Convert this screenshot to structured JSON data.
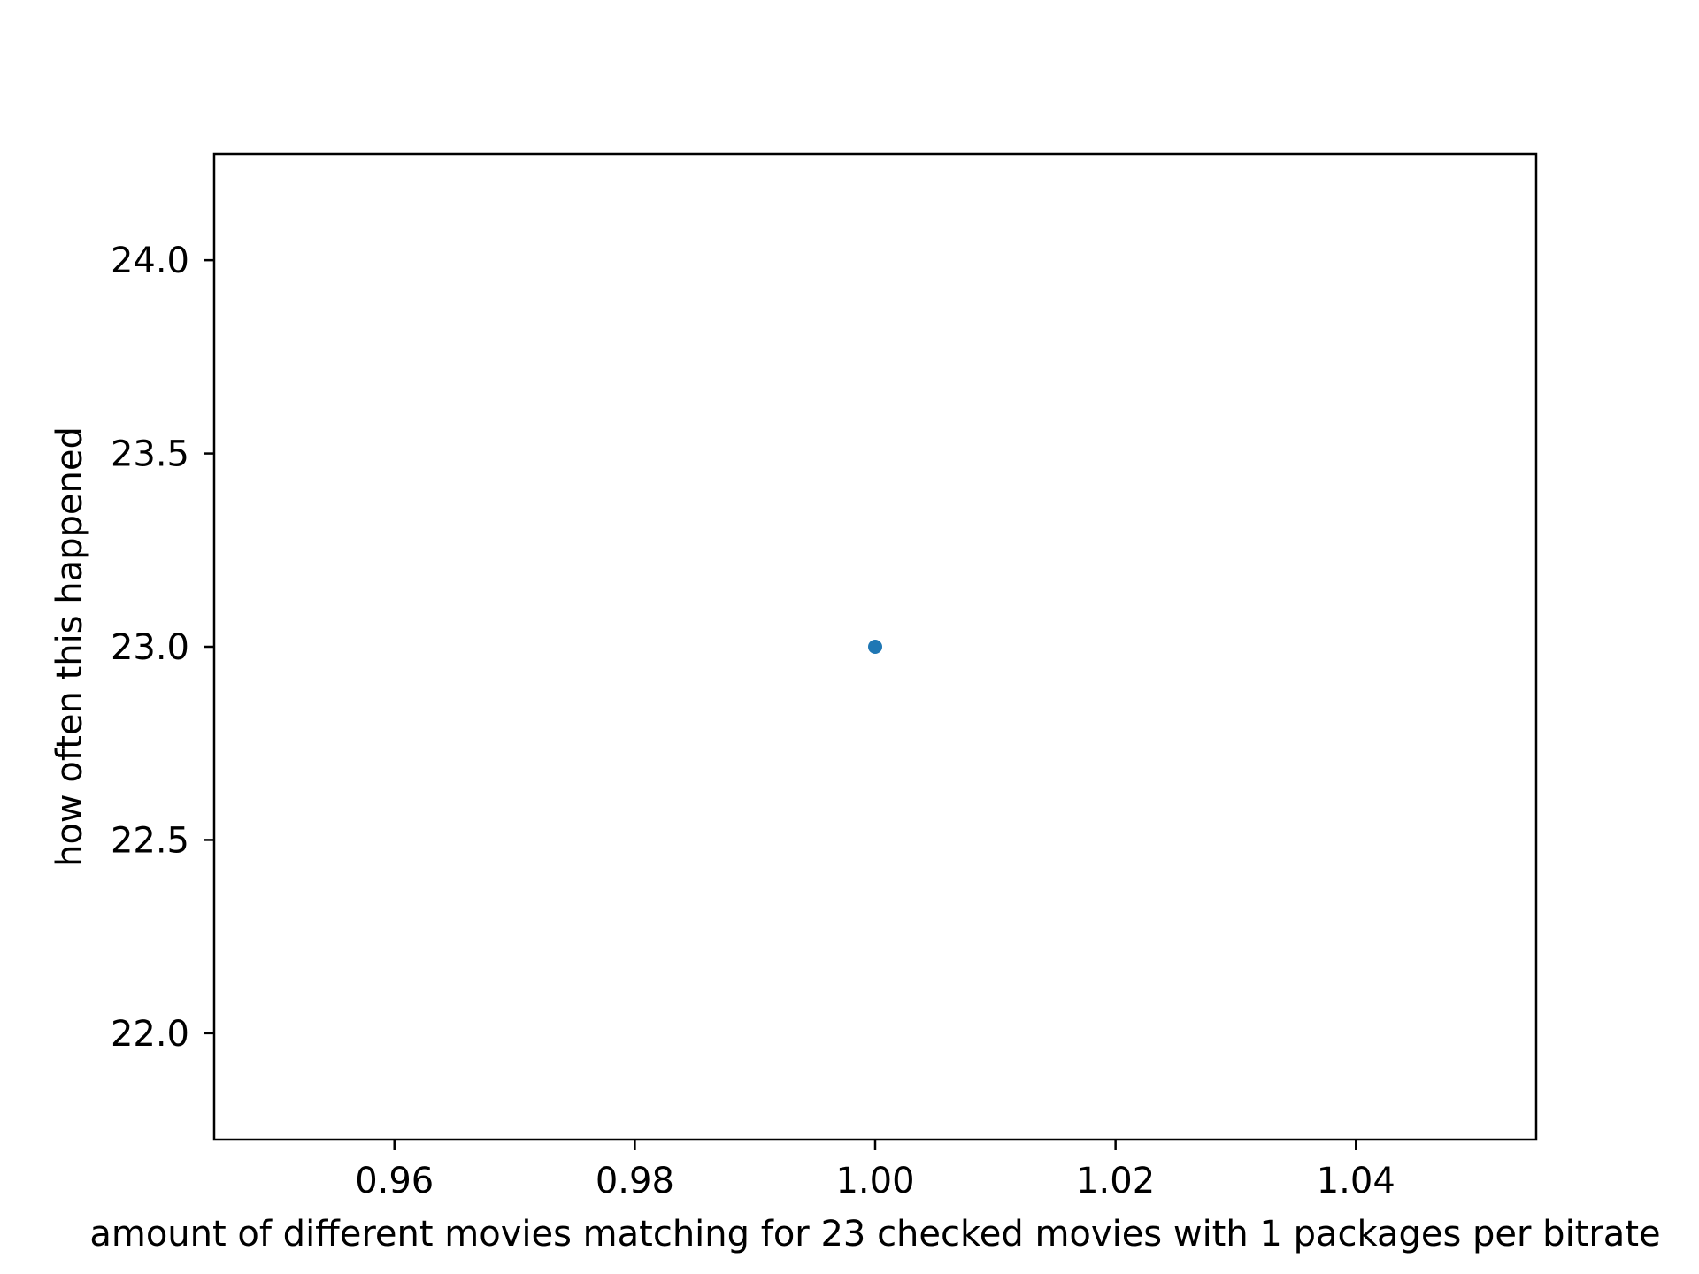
{
  "chart_data": {
    "type": "scatter",
    "title": "",
    "xlabel": "amount of different movies matching for 23 checked movies with 1 packages per bitrate",
    "ylabel": "how often this happened",
    "xlim": [
      0.945,
      1.055
    ],
    "ylim": [
      21.725,
      24.275
    ],
    "xticks": [
      0.96,
      0.98,
      1.0,
      1.02,
      1.04
    ],
    "xtick_labels": [
      "0.96",
      "0.98",
      "1.00",
      "1.02",
      "1.04"
    ],
    "yticks": [
      22.0,
      22.5,
      23.0,
      23.5,
      24.0
    ],
    "ytick_labels": [
      "22.0",
      "22.5",
      "23.0",
      "23.5",
      "24.0"
    ],
    "grid": false,
    "series": [
      {
        "x": [
          1.0
        ],
        "y": [
          23.0
        ],
        "color": "#1f77b4"
      }
    ]
  }
}
